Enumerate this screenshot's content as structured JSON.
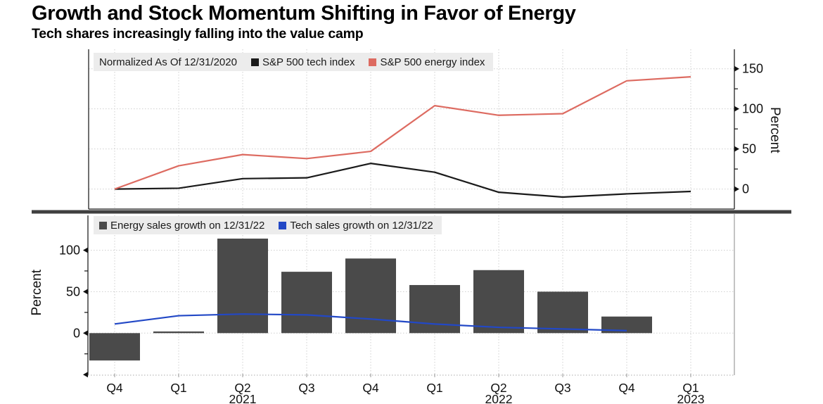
{
  "title": "Growth and Stock Momentum Shifting in Favor of Energy",
  "subtitle": "Tech shares increasingly falling into the value camp",
  "chart_data": [
    {
      "type": "line",
      "panel": "top",
      "legend_note": "Normalized As Of 12/31/2020",
      "categories": [
        "Q4 2020",
        "Q1 2021",
        "Q2 2021",
        "Q3 2021",
        "Q4 2021",
        "Q1 2022",
        "Q2 2022",
        "Q3 2022",
        "Q4 2022",
        "Q1 2023"
      ],
      "series": [
        {
          "name": "S&P 500 tech index",
          "color": "#1a1a1a",
          "values": [
            0,
            1,
            13,
            14,
            32,
            21,
            -4,
            -10,
            -6,
            -3
          ]
        },
        {
          "name": "S&P 500 energy index",
          "color": "#dd6b61",
          "values": [
            0,
            29,
            43,
            38,
            47,
            104,
            92,
            94,
            135,
            140
          ]
        }
      ],
      "ylabel": "Percent",
      "yticks": [
        0,
        50,
        100,
        150
      ],
      "minor_yticks": [
        25,
        75,
        125
      ],
      "ylim": [
        -27,
        162
      ],
      "y_axis_side": "right",
      "grid": true,
      "legend_position": "top-left"
    },
    {
      "type": "bar+line",
      "panel": "bottom",
      "categories": [
        "Q4 2020",
        "Q1 2021",
        "Q2 2021",
        "Q3 2021",
        "Q4 2021",
        "Q1 2022",
        "Q2 2022",
        "Q3 2022",
        "Q4 2022",
        "Q1 2023"
      ],
      "x_tick_labels": [
        "Q4",
        "Q1",
        "Q2",
        "Q3",
        "Q4",
        "Q1",
        "Q2",
        "Q3",
        "Q4",
        "Q1"
      ],
      "year_labels": [
        {
          "index": 2,
          "label": "2021"
        },
        {
          "index": 6,
          "label": "2022"
        },
        {
          "index": 9,
          "label": "2023"
        }
      ],
      "series": [
        {
          "name": "Energy sales growth on 12/31/22",
          "render": "bar",
          "color": "#4a4a4a",
          "values": [
            -33,
            2,
            114,
            74,
            90,
            58,
            76,
            50,
            20,
            null
          ]
        },
        {
          "name": "Tech sales growth on 12/31/22",
          "render": "line",
          "color": "#2248c6",
          "values": [
            11,
            21,
            23,
            22,
            17,
            11,
            7,
            5,
            3,
            null
          ]
        }
      ],
      "ylabel": "Percent",
      "yticks": [
        0,
        50,
        100
      ],
      "minor_yticks": [
        -25,
        25,
        75
      ],
      "ylim": [
        -50,
        120
      ],
      "y_axis_side": "left",
      "grid": true,
      "legend_position": "top-left"
    }
  ]
}
